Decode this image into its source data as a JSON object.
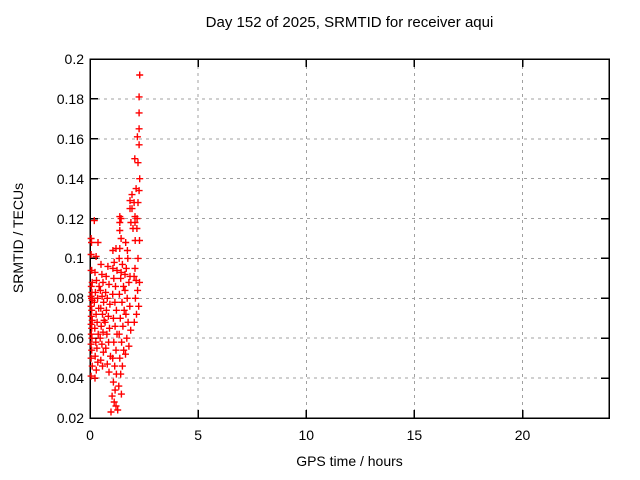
{
  "chart_data": {
    "type": "scatter",
    "title": "Day 152 of 2025, SRMTID for receiver aqui",
    "xlabel": "GPS time / hours",
    "ylabel": "SRMTID / TECUs",
    "xlim": [
      0,
      24
    ],
    "ylim": [
      0.02,
      0.2
    ],
    "xticks": [
      {
        "v": 0,
        "label": "0"
      },
      {
        "v": 5,
        "label": "5"
      },
      {
        "v": 10,
        "label": "10"
      },
      {
        "v": 15,
        "label": "15"
      },
      {
        "v": 20,
        "label": "20"
      }
    ],
    "yticks": [
      {
        "v": 0.02,
        "label": "0.02"
      },
      {
        "v": 0.04,
        "label": "0.04"
      },
      {
        "v": 0.06,
        "label": "0.06"
      },
      {
        "v": 0.08,
        "label": "0.08"
      },
      {
        "v": 0.1,
        "label": "0.1"
      },
      {
        "v": 0.12,
        "label": "0.12"
      },
      {
        "v": 0.14,
        "label": "0.14"
      },
      {
        "v": 0.16,
        "label": "0.16"
      },
      {
        "v": 0.18,
        "label": "0.18"
      },
      {
        "v": 0.2,
        "label": "0.2"
      }
    ],
    "grid": true,
    "legend_position": "none",
    "marker": "plus",
    "marker_color": "#ff0000",
    "grid_color": "#a0a0a0",
    "border_color": "#000000",
    "background_color": "#ffffff",
    "points": [
      [
        0.05,
        0.11
      ],
      [
        0.07,
        0.108
      ],
      [
        0.05,
        0.102
      ],
      [
        0.08,
        0.094
      ],
      [
        0.05,
        0.094
      ],
      [
        0.1,
        0.088
      ],
      [
        0.06,
        0.086
      ],
      [
        0.09,
        0.083
      ],
      [
        0.05,
        0.081
      ],
      [
        0.07,
        0.08
      ],
      [
        0.1,
        0.079
      ],
      [
        0.05,
        0.076
      ],
      [
        0.08,
        0.074
      ],
      [
        0.06,
        0.071
      ],
      [
        0.1,
        0.069
      ],
      [
        0.05,
        0.067
      ],
      [
        0.08,
        0.065
      ],
      [
        0.06,
        0.062
      ],
      [
        0.09,
        0.06
      ],
      [
        0.05,
        0.057
      ],
      [
        0.08,
        0.054
      ],
      [
        0.05,
        0.05
      ],
      [
        0.1,
        0.046
      ],
      [
        0.05,
        0.041
      ],
      [
        0.2,
        0.119
      ],
      [
        0.37,
        0.108
      ],
      [
        0.28,
        0.101
      ],
      [
        0.23,
        0.093
      ],
      [
        0.3,
        0.089
      ],
      [
        0.42,
        0.086
      ],
      [
        0.25,
        0.083
      ],
      [
        0.35,
        0.08
      ],
      [
        0.2,
        0.078
      ],
      [
        0.4,
        0.075
      ],
      [
        0.28,
        0.072
      ],
      [
        0.33,
        0.068
      ],
      [
        0.22,
        0.065
      ],
      [
        0.38,
        0.062
      ],
      [
        0.27,
        0.058
      ],
      [
        0.32,
        0.055
      ],
      [
        0.24,
        0.051
      ],
      [
        0.36,
        0.048
      ],
      [
        0.29,
        0.044
      ],
      [
        0.23,
        0.04
      ],
      [
        0.51,
        0.097
      ],
      [
        0.55,
        0.092
      ],
      [
        0.6,
        0.088
      ],
      [
        0.48,
        0.084
      ],
      [
        0.56,
        0.081
      ],
      [
        0.63,
        0.078
      ],
      [
        0.5,
        0.075
      ],
      [
        0.58,
        0.072
      ],
      [
        0.65,
        0.069
      ],
      [
        0.52,
        0.066
      ],
      [
        0.6,
        0.063
      ],
      [
        0.47,
        0.06
      ],
      [
        0.55,
        0.057
      ],
      [
        0.62,
        0.053
      ],
      [
        0.5,
        0.049
      ],
      [
        0.58,
        0.046
      ],
      [
        0.83,
        0.096
      ],
      [
        0.75,
        0.091
      ],
      [
        0.88,
        0.087
      ],
      [
        0.72,
        0.083
      ],
      [
        0.8,
        0.08
      ],
      [
        0.92,
        0.077
      ],
      [
        0.76,
        0.074
      ],
      [
        0.85,
        0.071
      ],
      [
        0.7,
        0.068
      ],
      [
        0.9,
        0.065
      ],
      [
        0.78,
        0.062
      ],
      [
        0.86,
        0.058
      ],
      [
        0.73,
        0.055
      ],
      [
        0.95,
        0.051
      ],
      [
        0.8,
        0.047
      ],
      [
        0.88,
        0.043
      ],
      [
        1.06,
        0.104
      ],
      [
        1.2,
        0.105
      ],
      [
        1.12,
        0.098
      ],
      [
        1.06,
        0.095
      ],
      [
        1.25,
        0.094
      ],
      [
        1.1,
        0.09
      ],
      [
        1.18,
        0.086
      ],
      [
        1.05,
        0.082
      ],
      [
        1.15,
        0.078
      ],
      [
        1.22,
        0.074
      ],
      [
        1.08,
        0.07
      ],
      [
        1.16,
        0.066
      ],
      [
        1.25,
        0.062
      ],
      [
        1.1,
        0.058
      ],
      [
        1.2,
        0.054
      ],
      [
        1.05,
        0.05
      ],
      [
        1.14,
        0.046
      ],
      [
        1.22,
        0.042
      ],
      [
        1.08,
        0.038
      ],
      [
        1.16,
        0.034
      ],
      [
        1.02,
        0.031
      ],
      [
        1.12,
        0.028
      ],
      [
        1.2,
        0.026
      ],
      [
        0.97,
        0.023
      ],
      [
        1.28,
        0.024
      ],
      [
        1.38,
        0.121
      ],
      [
        1.44,
        0.12
      ],
      [
        1.38,
        0.118
      ],
      [
        1.38,
        0.114
      ],
      [
        1.44,
        0.11
      ],
      [
        1.38,
        0.105
      ],
      [
        1.35,
        0.1
      ],
      [
        1.5,
        0.097
      ],
      [
        1.44,
        0.093
      ],
      [
        1.42,
        0.09
      ],
      [
        1.55,
        0.086
      ],
      [
        1.36,
        0.082
      ],
      [
        1.48,
        0.078
      ],
      [
        1.58,
        0.074
      ],
      [
        1.4,
        0.07
      ],
      [
        1.52,
        0.066
      ],
      [
        1.35,
        0.062
      ],
      [
        1.46,
        0.058
      ],
      [
        1.56,
        0.054
      ],
      [
        1.38,
        0.05
      ],
      [
        1.5,
        0.046
      ],
      [
        1.42,
        0.042
      ],
      [
        1.33,
        0.036
      ],
      [
        1.45,
        0.032
      ],
      [
        1.94,
        0.132
      ],
      [
        1.85,
        0.129
      ],
      [
        1.94,
        0.125
      ],
      [
        1.85,
        0.125
      ],
      [
        1.89,
        0.118
      ],
      [
        1.73,
        0.104
      ],
      [
        1.65,
        0.108
      ],
      [
        1.75,
        0.1
      ],
      [
        1.68,
        0.095
      ],
      [
        1.62,
        0.092
      ],
      [
        1.85,
        0.091
      ],
      [
        1.8,
        0.088
      ],
      [
        1.62,
        0.084
      ],
      [
        1.72,
        0.08
      ],
      [
        1.84,
        0.076
      ],
      [
        1.66,
        0.072
      ],
      [
        1.76,
        0.068
      ],
      [
        1.88,
        0.064
      ],
      [
        1.7,
        0.06
      ],
      [
        1.8,
        0.056
      ],
      [
        1.64,
        0.052
      ],
      [
        2.3,
        0.192
      ],
      [
        2.27,
        0.181
      ],
      [
        2.27,
        0.173
      ],
      [
        2.27,
        0.165
      ],
      [
        2.19,
        0.161
      ],
      [
        2.27,
        0.157
      ],
      [
        2.07,
        0.15
      ],
      [
        2.22,
        0.148
      ],
      [
        2.3,
        0.14
      ],
      [
        2.13,
        0.135
      ],
      [
        2.27,
        0.134
      ],
      [
        2.22,
        0.128
      ],
      [
        2.04,
        0.128
      ],
      [
        2.08,
        0.121
      ],
      [
        2.18,
        0.12
      ],
      [
        2.08,
        0.118
      ],
      [
        2.17,
        0.115
      ],
      [
        1.99,
        0.115
      ],
      [
        2.09,
        0.109
      ],
      [
        2.29,
        0.109
      ],
      [
        2.22,
        0.1
      ],
      [
        2.08,
        0.095
      ],
      [
        2.04,
        0.091
      ],
      [
        2.13,
        0.089
      ],
      [
        2.29,
        0.088
      ],
      [
        2.2,
        0.084
      ],
      [
        2.1,
        0.08
      ],
      [
        2.25,
        0.076
      ],
      [
        2.15,
        0.072
      ],
      [
        2.05,
        0.068
      ]
    ]
  }
}
